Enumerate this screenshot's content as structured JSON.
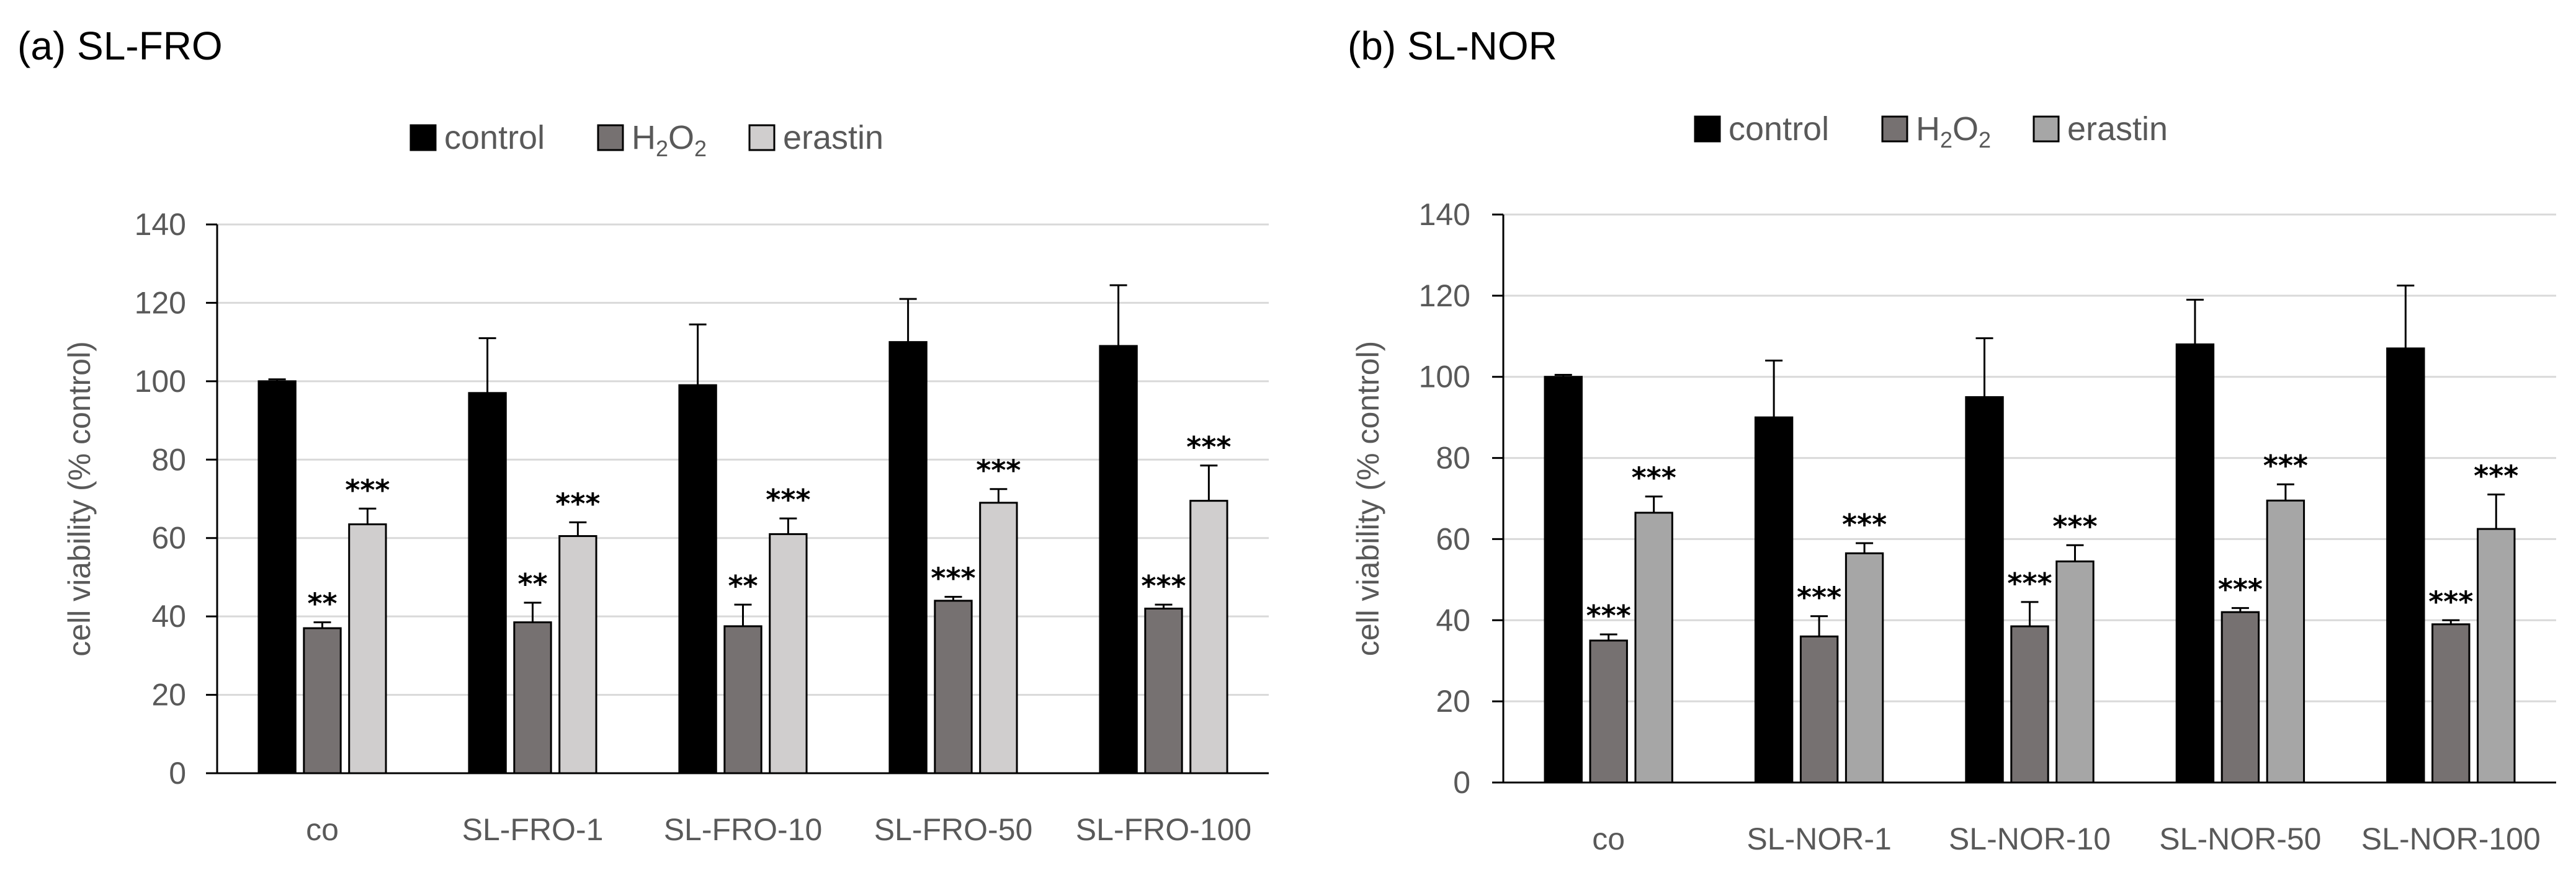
{
  "chart_data": [
    {
      "type": "bar",
      "title": "(a) SL-FRO",
      "ylabel": "cell viability (% control)",
      "xlabel": "",
      "ylim": [
        0,
        140
      ],
      "yticks": [
        0,
        20,
        40,
        60,
        80,
        100,
        120,
        140
      ],
      "categories": [
        "co",
        "SL-FRO-1",
        "SL-FRO-10",
        "SL-FRO-50",
        "SL-FRO-100"
      ],
      "legend_position": "top-center",
      "series": [
        {
          "name": "control",
          "label_main": "control",
          "label_sub": "",
          "label_tail": "",
          "color": "#000000",
          "values": [
            100,
            97,
            99,
            110,
            109
          ],
          "errors": [
            0.5,
            14,
            15.5,
            11,
            15.5
          ],
          "sig": [
            "",
            "",
            "",
            "",
            ""
          ]
        },
        {
          "name": "H2O2",
          "label_main": "H",
          "label_sub": "2",
          "label_tail": "O",
          "label_sub2": "2",
          "color": "#767171",
          "values": [
            37,
            38.5,
            37.5,
            44,
            42
          ],
          "errors": [
            1.5,
            5,
            5.5,
            1,
            1
          ],
          "sig": [
            "**",
            "**",
            "**",
            "***",
            "***"
          ]
        },
        {
          "name": "erastin",
          "label_main": "erastin",
          "label_sub": "",
          "label_tail": "",
          "color": "#d0cece",
          "values": [
            63.5,
            60.5,
            61,
            69,
            69.5
          ],
          "errors": [
            4,
            3.5,
            4,
            3.5,
            9
          ],
          "sig": [
            "***",
            "***",
            "***",
            "***",
            "***"
          ]
        }
      ]
    },
    {
      "type": "bar",
      "title": "(b) SL-NOR",
      "ylabel": "cell viability (% control)",
      "xlabel": "",
      "ylim": [
        0,
        140
      ],
      "yticks": [
        0,
        20,
        40,
        60,
        80,
        100,
        120,
        140
      ],
      "categories": [
        "co",
        "SL-NOR-1",
        "SL-NOR-10",
        "SL-NOR-50",
        "SL-NOR-100"
      ],
      "legend_position": "top-center",
      "series": [
        {
          "name": "control",
          "label_main": "control",
          "label_sub": "",
          "label_tail": "",
          "color": "#000000",
          "values": [
            100,
            90,
            95,
            108,
            107
          ],
          "errors": [
            0.5,
            14,
            14.5,
            11,
            15.5
          ],
          "sig": [
            "",
            "",
            "",
            "",
            ""
          ]
        },
        {
          "name": "H2O2",
          "label_main": "H",
          "label_sub": "2",
          "label_tail": "O",
          "label_sub2": "2",
          "color": "#767171",
          "values": [
            35,
            36,
            38.5,
            42,
            39
          ],
          "errors": [
            1.5,
            5,
            6,
            1,
            1
          ],
          "sig": [
            "***",
            "***",
            "***",
            "***",
            "***"
          ]
        },
        {
          "name": "erastin",
          "label_main": "erastin",
          "label_sub": "",
          "label_tail": "",
          "color": "#a6a6a6",
          "values": [
            66.5,
            56.5,
            54.5,
            69.5,
            62.5
          ],
          "errors": [
            4,
            2.5,
            4,
            4,
            8.5
          ],
          "sig": [
            "***",
            "***",
            "***",
            "***",
            "***"
          ]
        }
      ]
    }
  ]
}
